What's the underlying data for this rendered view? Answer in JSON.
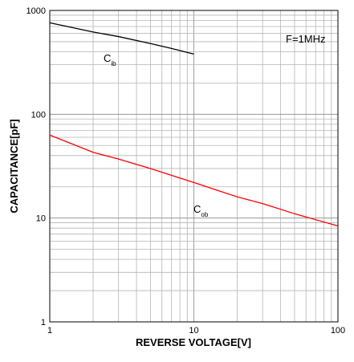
{
  "chart_data": {
    "type": "line",
    "xlabel": "REVERSE VOLTAGE[V]",
    "ylabel": "CAPACITANCE[pF]",
    "xscale": "log",
    "yscale": "log",
    "xlim": [
      1,
      100
    ],
    "ylim": [
      1,
      1000
    ],
    "grid": true,
    "x_ticks": [
      1,
      10,
      100
    ],
    "x_tick_labels": [
      "1",
      "10",
      "100"
    ],
    "y_ticks": [
      1,
      10,
      100,
      1000
    ],
    "y_tick_labels": [
      "1",
      "10",
      "100",
      "1000"
    ],
    "annotation": "F=1MHz",
    "series": [
      {
        "name": "Cib",
        "label_main": "C",
        "label_sub": "ib",
        "color": "#000000",
        "x": [
          1,
          2,
          3,
          5,
          7,
          10
        ],
        "y": [
          760,
          620,
          560,
          480,
          430,
          380
        ]
      },
      {
        "name": "Cob",
        "label_main": "C",
        "label_sub": "ob",
        "color": "#ff0000",
        "x": [
          1,
          2,
          3,
          5,
          10,
          20,
          30,
          50,
          100
        ],
        "y": [
          63,
          43,
          37,
          30,
          22,
          16,
          13.8,
          11,
          8.4
        ]
      }
    ]
  }
}
